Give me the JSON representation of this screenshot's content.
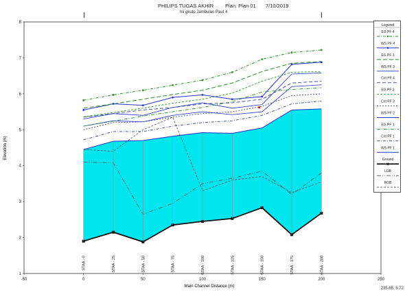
{
  "header": {
    "title": "PHILIPS TUGAS AKHIR",
    "plan": "Plan: Plan 01",
    "date": "7/10/2019",
    "subtitle": "Ini gkuto Jambulan Paut 4"
  },
  "coord_readout": "235.65, 5.72",
  "colors": {
    "fill": "#00e5ee",
    "ground": "#111111",
    "ws_lines": "#2233cc",
    "ws_dashed": "#334499",
    "eg_lines": "#2b8f2b",
    "bank": "#555555",
    "crit": "#cc2222"
  },
  "chart_data": {
    "type": "line",
    "title": "PHILIPS TUGAS AKHIR",
    "xlabel": "Main Channel Distance (m)",
    "ylabel": "Elevation (m)",
    "xlim": [
      -50,
      250
    ],
    "ylim": [
      1,
      8
    ],
    "x_ticks": [
      -50,
      0,
      50,
      100,
      150,
      200,
      250
    ],
    "y_ticks": [
      1,
      2,
      3,
      4,
      5,
      6,
      7,
      8
    ],
    "grid": false,
    "legend_position": "right",
    "legend_title": "Legend",
    "stations": [
      {
        "x": 0,
        "label": "STAA - 0"
      },
      {
        "x": 25,
        "label": "STAA - 25"
      },
      {
        "x": 50,
        "label": "STAA - 50"
      },
      {
        "x": 75,
        "label": "STAA - 75"
      },
      {
        "x": 100,
        "label": "STAA - 100"
      },
      {
        "x": 125,
        "label": "STAA - 125"
      },
      {
        "x": 150,
        "label": "STAA - 150"
      },
      {
        "x": 175,
        "label": "STAA - 175"
      },
      {
        "x": 200,
        "label": "STAA - 200"
      }
    ],
    "x": [
      0,
      25,
      50,
      75,
      100,
      125,
      150,
      175,
      200
    ],
    "series": [
      {
        "name": "EG PF 4",
        "style": "eg1",
        "values": [
          5.82,
          5.97,
          6.1,
          6.24,
          6.38,
          6.6,
          6.96,
          7.15,
          7.22
        ]
      },
      {
        "name": "EG PF 3",
        "style": "eg2",
        "values": [
          5.6,
          5.72,
          5.85,
          5.98,
          6.1,
          6.3,
          6.62,
          6.85,
          6.9
        ]
      },
      {
        "name": "EG PF 2",
        "style": "eg3",
        "values": [
          5.36,
          5.48,
          5.6,
          5.74,
          5.85,
          6.02,
          6.35,
          6.6,
          6.62
        ]
      },
      {
        "name": "EG PF 1",
        "style": "eg4",
        "values": [
          5.1,
          5.24,
          5.38,
          5.5,
          5.62,
          5.78,
          6.05,
          6.12,
          6.17
        ]
      },
      {
        "name": "WS PF 4",
        "style": "ws1",
        "values": [
          5.55,
          5.72,
          5.68,
          5.9,
          5.97,
          5.85,
          5.92,
          6.82,
          6.88
        ]
      },
      {
        "name": "WS PF 3",
        "style": "ws2",
        "values": [
          5.3,
          5.45,
          5.4,
          5.62,
          5.75,
          5.6,
          5.7,
          6.55,
          6.58
        ]
      },
      {
        "name": "WS PF 2",
        "style": "ws3",
        "values": [
          5.1,
          5.25,
          5.22,
          5.4,
          5.5,
          5.42,
          5.5,
          6.2,
          6.25
        ]
      },
      {
        "name": "WS PF 1",
        "style": "ws4",
        "values": [
          4.45,
          4.68,
          4.7,
          4.82,
          4.92,
          4.9,
          5.05,
          5.55,
          5.58
        ]
      },
      {
        "name": "Crit PF 4",
        "style": "crit1",
        "values": [
          5.35,
          5.45,
          5.55,
          5.62,
          5.72,
          5.75,
          5.85,
          6.3,
          6.35
        ]
      },
      {
        "name": "Crit PF 3",
        "style": "crit2",
        "values": [
          5.0,
          5.2,
          5.22,
          5.35,
          5.45,
          5.5,
          5.65,
          5.95,
          6.0
        ]
      },
      {
        "name": "Crit PF 1",
        "style": "crit3",
        "values": [
          4.72,
          4.95,
          4.95,
          5.1,
          5.2,
          5.25,
          5.4,
          5.72,
          5.8
        ]
      },
      {
        "name": "Ground",
        "style": "ground",
        "values": [
          1.9,
          2.15,
          1.88,
          2.35,
          2.45,
          2.53,
          2.83,
          2.08,
          2.68
        ]
      },
      {
        "name": "LOB",
        "style": "lob",
        "values": [
          4.1,
          4.08,
          2.65,
          2.95,
          3.5,
          3.65,
          3.85,
          3.2,
          3.8
        ]
      },
      {
        "name": "ROB",
        "style": "rob",
        "values": [
          4.45,
          4.4,
          5.0,
          5.35,
          3.3,
          3.6,
          3.7,
          3.25,
          3.55
        ]
      }
    ],
    "legend_entries": [
      "EG PF 4",
      "WS PF 4",
      "EG PF 3",
      "WS PF 3",
      "Crit PF 4",
      "EG PF 2",
      "Crit PF 3",
      "WS PF 2",
      "EG PF 1",
      "Crit PF 1",
      "WS PF 1",
      "Ground",
      "LOB",
      "ROB"
    ]
  }
}
